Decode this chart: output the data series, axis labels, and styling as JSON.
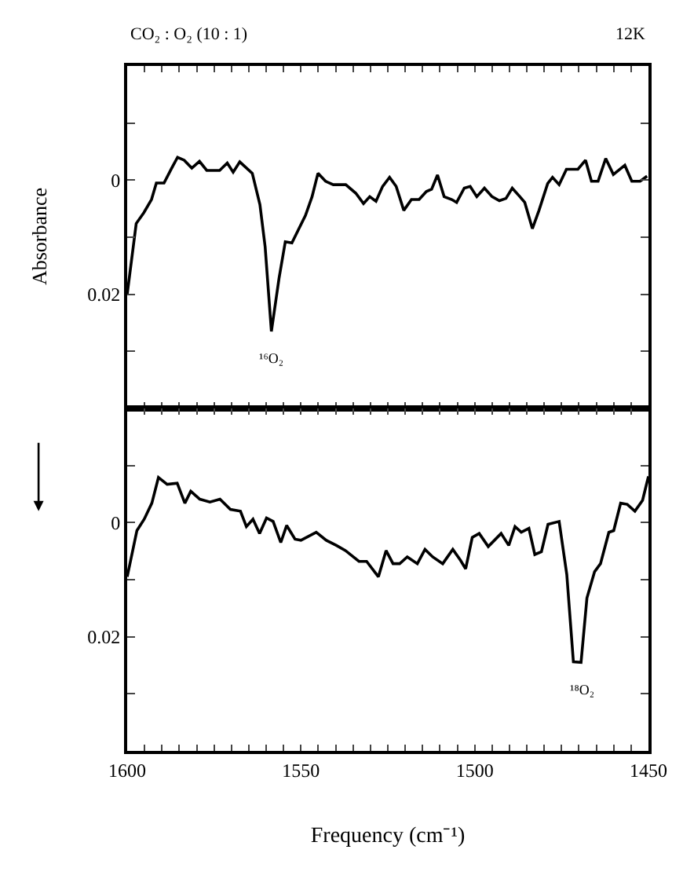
{
  "chart_data": [
    {
      "type": "line",
      "title": "CO₂ : O₂ (10 : 1)",
      "ylabel": "Absorbance",
      "tick_labels": "y",
      "annotations": [
        "12K",
        {
          "text": "¹⁶O₂",
          "x": 1558.5,
          "y": 0.0265
        }
      ],
      "xlim": [
        1600,
        1450
      ],
      "xticks": [
        1600,
        {
          "value": 1595,
          "label": null
        },
        {
          "value": 1590,
          "label": null
        },
        {
          "value": 1585,
          "label": null
        },
        {
          "value": 1580,
          "label": null
        },
        {
          "value": 1575,
          "label": null
        },
        {
          "value": 1570,
          "label": null
        },
        {
          "value": 1565,
          "label": null
        },
        {
          "value": 1560,
          "label": null
        },
        {
          "value": 1555,
          "label": null
        },
        1550,
        {
          "value": 1545,
          "label": null
        },
        {
          "value": 1540,
          "label": null
        },
        {
          "value": 1535,
          "label": null
        },
        {
          "value": 1530,
          "label": null
        },
        {
          "value": 1525,
          "label": null
        },
        {
          "value": 1520,
          "label": null
        },
        {
          "value": 1515,
          "label": null
        },
        {
          "value": 1510,
          "label": null
        },
        {
          "value": 1505,
          "label": null
        },
        1500,
        {
          "value": 1495,
          "label": null
        },
        {
          "value": 1490,
          "label": null
        },
        {
          "value": 1485,
          "label": null
        },
        {
          "value": 1480,
          "label": null
        },
        {
          "value": 1475,
          "label": null
        },
        {
          "value": 1470,
          "label": null
        },
        {
          "value": 1465,
          "label": null
        },
        {
          "value": 1460,
          "label": null
        },
        {
          "value": 1455,
          "label": null
        },
        1450
      ],
      "ylim": [
        0.04,
        -0.02
      ],
      "yticks": [
        {
          "value": -0.02,
          "label": null
        },
        {
          "value": -0.01,
          "label": null
        },
        0,
        {
          "value": 0.01,
          "label": null
        },
        0.02,
        {
          "value": 0.03,
          "label": null
        },
        {
          "value": 0.04,
          "label": null
        }
      ],
      "marker": "none",
      "line_style": "solid",
      "series": [
        {
          "color": "#000000",
          "x": [
            1600,
            1597.4,
            1595.2,
            1593.0,
            1591.6,
            1589.4,
            1587.2,
            1585.5,
            1583.6,
            1581.4,
            1579.2,
            1577.1,
            1573.4,
            1571.2,
            1569.5,
            1567.6,
            1564.0,
            1561.8,
            1560.3,
            1558.5,
            1556.3,
            1554.5,
            1552.6,
            1550.9,
            1548.7,
            1546.8,
            1545.1,
            1542.9,
            1540.7,
            1537.1,
            1534.2,
            1532.0,
            1530.2,
            1528.4,
            1526.5,
            1524.5,
            1522.6,
            1520.4,
            1518.2,
            1516.0,
            1513.9,
            1512.4,
            1510.7,
            1508.8,
            1506.6,
            1505.2,
            1503.0,
            1501.3,
            1499.4,
            1497.2,
            1495.0,
            1492.9,
            1491.0,
            1489.2,
            1487.0,
            1485.6,
            1483.4,
            1481.5,
            1479.0,
            1477.6,
            1475.7,
            1473.6,
            1470.3,
            1468.1,
            1466.4,
            1464.5,
            1462.3,
            1460.1,
            1456.8,
            1454.8,
            1452.4,
            1450.4
          ],
          "values": [
            0.02,
            0.0076,
            0.0057,
            0.0034,
            0.0005,
            0.0005,
            -0.0021,
            -0.004,
            -0.0035,
            -0.0021,
            -0.0033,
            -0.0017,
            -0.0017,
            -0.003,
            -0.0014,
            -0.0032,
            -0.0012,
            0.0043,
            0.0117,
            0.0265,
            0.0172,
            0.0108,
            0.011,
            0.0089,
            0.0062,
            0.0029,
            -0.0012,
            0.0002,
            0.0008,
            0.0008,
            0.0023,
            0.0041,
            0.0029,
            0.0037,
            0.0011,
            -0.0005,
            0.0011,
            0.0053,
            0.0034,
            0.0034,
            0.002,
            0.0016,
            -0.0009,
            0.0029,
            0.0034,
            0.0039,
            0.0014,
            0.0011,
            0.0029,
            0.0014,
            0.0029,
            0.0036,
            0.0032,
            0.0014,
            0.0029,
            0.0039,
            0.0085,
            0.0053,
            0.0006,
            -0.0005,
            0.0008,
            -0.0019,
            -0.0019,
            -0.0035,
            0.0002,
            0.0002,
            -0.0038,
            -0.001,
            -0.0026,
            0.0002,
            0.0002,
            -0.0007
          ]
        }
      ]
    },
    {
      "type": "line",
      "xlabel": "Frequency (cm⁻¹)",
      "annotations": [
        {
          "text": "¹⁸O₂",
          "x": 1469.4,
          "y": 0.0245
        }
      ],
      "xlim": [
        1600,
        1450
      ],
      "xticks": [
        1600,
        {
          "value": 1595,
          "label": null
        },
        {
          "value": 1590,
          "label": null
        },
        {
          "value": 1585,
          "label": null
        },
        {
          "value": 1580,
          "label": null
        },
        {
          "value": 1575,
          "label": null
        },
        {
          "value": 1570,
          "label": null
        },
        {
          "value": 1565,
          "label": null
        },
        {
          "value": 1560,
          "label": null
        },
        {
          "value": 1555,
          "label": null
        },
        1550,
        {
          "value": 1545,
          "label": null
        },
        {
          "value": 1540,
          "label": null
        },
        {
          "value": 1535,
          "label": null
        },
        {
          "value": 1530,
          "label": null
        },
        {
          "value": 1525,
          "label": null
        },
        {
          "value": 1520,
          "label": null
        },
        {
          "value": 1515,
          "label": null
        },
        {
          "value": 1510,
          "label": null
        },
        {
          "value": 1505,
          "label": null
        },
        1500,
        {
          "value": 1495,
          "label": null
        },
        {
          "value": 1490,
          "label": null
        },
        {
          "value": 1485,
          "label": null
        },
        {
          "value": 1480,
          "label": null
        },
        {
          "value": 1475,
          "label": null
        },
        {
          "value": 1470,
          "label": null
        },
        {
          "value": 1465,
          "label": null
        },
        {
          "value": 1460,
          "label": null
        },
        {
          "value": 1455,
          "label": null
        },
        1450
      ],
      "ylim": [
        0.04,
        -0.02
      ],
      "yticks": [
        {
          "value": -0.02,
          "label": null
        },
        {
          "value": -0.01,
          "label": null
        },
        0,
        {
          "value": 0.01,
          "label": null
        },
        0.02,
        {
          "value": 0.03,
          "label": null
        },
        {
          "value": 0.04,
          "label": null
        }
      ],
      "marker": "none",
      "line_style": "solid",
      "series": [
        {
          "color": "#000000",
          "x": [
            1600,
            1597.2,
            1595.1,
            1592.9,
            1591.0,
            1588.5,
            1585.6,
            1583.4,
            1581.7,
            1579.1,
            1576.2,
            1573.3,
            1570.3,
            1567.4,
            1565.7,
            1563.8,
            1561.9,
            1559.9,
            1558.0,
            1555.8,
            1554.1,
            1551.7,
            1550.0,
            1545.6,
            1542.7,
            1539.8,
            1537.2,
            1533.3,
            1531.1,
            1527.7,
            1525.5,
            1523.5,
            1521.6,
            1519.4,
            1516.5,
            1514.3,
            1512.1,
            1509.2,
            1506.3,
            1504.1,
            1502.6,
            1500.7,
            1498.7,
            1496.1,
            1492.4,
            1490.2,
            1488.4,
            1486.6,
            1484.4,
            1482.7,
            1480.8,
            1478.9,
            1475.7,
            1473.5,
            1471.6,
            1469.4,
            1467.7,
            1465.5,
            1463.8,
            1461.4,
            1460.0,
            1458.0,
            1456.1,
            1453.9,
            1451.7,
            1450
          ],
          "values": [
            0.0095,
            0.0014,
            -0.0006,
            -0.0034,
            -0.0079,
            -0.0067,
            -0.0069,
            -0.0034,
            -0.0055,
            -0.0041,
            -0.0036,
            -0.0041,
            -0.0023,
            -0.002,
            0.0007,
            -0.0006,
            0.0019,
            -0.0008,
            -0.0002,
            0.0035,
            0.0005,
            0.0029,
            0.0031,
            0.0017,
            0.0031,
            0.004,
            0.0049,
            0.0068,
            0.0068,
            0.0095,
            0.0049,
            0.0072,
            0.0072,
            0.006,
            0.0072,
            0.0047,
            0.006,
            0.0072,
            0.0047,
            0.0066,
            0.0081,
            0.0026,
            0.0019,
            0.0042,
            0.0019,
            0.004,
            0.0007,
            0.0017,
            0.001,
            0.0056,
            0.0051,
            0.0003,
            -0.0002,
            0.0091,
            0.0244,
            0.0245,
            0.0132,
            0.0086,
            0.0072,
            0.0017,
            0.0014,
            -0.0034,
            -0.0032,
            -0.002,
            -0.0039,
            -0.0081
          ]
        }
      ]
    }
  ]
}
